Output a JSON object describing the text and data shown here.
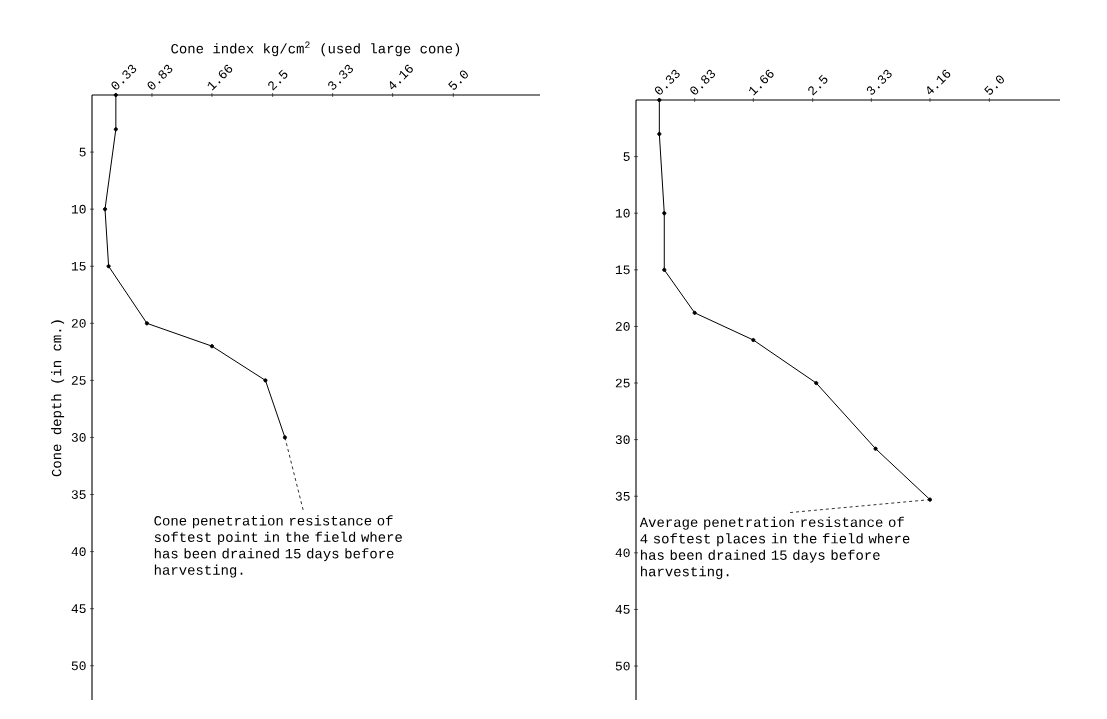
{
  "chart_data": [
    {
      "type": "line",
      "xlabel": "Cone index kg/cm$^{2}$ (used large cone)",
      "ylabel": "Cone depth (in cm.)",
      "xlim": [
        0,
        6.2
      ],
      "xticks": [
        0.33,
        0.83,
        1.66,
        2.5,
        3.33,
        4.16,
        {
          "value": 5,
          "label": "5.0"
        }
      ],
      "ylim": [
        53,
        0
      ],
      "yticks": [
        5,
        10,
        15,
        20,
        25,
        30,
        35,
        40,
        45,
        50
      ],
      "x": [
        0.33,
        0.33,
        0.18,
        0.23,
        0.76,
        1.66,
        2.4,
        2.67
      ],
      "values": [
        0,
        3,
        10,
        15,
        20,
        22,
        25,
        30
      ],
      "color": "#000000",
      "marker": "circle",
      "line_style": "solid",
      "annotations": [
        {
          "text": "Cone penetration resistance of softest point in the field where has been drained 15 days before harvesting.",
          "x": 2.67,
          "y": 30
        }
      ]
    },
    {
      "type": "line",
      "xlim": [
        0,
        6.0
      ],
      "xticks": [
        0.33,
        0.83,
        1.66,
        2.5,
        3.33,
        4.16,
        {
          "value": 5,
          "label": "5.0"
        }
      ],
      "ylim": [
        53,
        0
      ],
      "yticks": [
        5,
        10,
        15,
        20,
        25,
        30,
        35,
        40,
        45,
        50
      ],
      "x": [
        0.33,
        0.33,
        0.4,
        0.4,
        0.83,
        1.66,
        2.55,
        3.39,
        4.16
      ],
      "values": [
        0,
        3,
        10,
        15,
        18.8,
        21.2,
        25,
        30.8,
        35.3
      ],
      "color": "#000000",
      "marker": "circle",
      "line_style": "solid",
      "annotations": [
        {
          "text": "Average penetration resistance of 4 softest places in the field where has been drained 15 days before harvesting.",
          "x": 4.16,
          "y": 35.3
        }
      ]
    }
  ]
}
